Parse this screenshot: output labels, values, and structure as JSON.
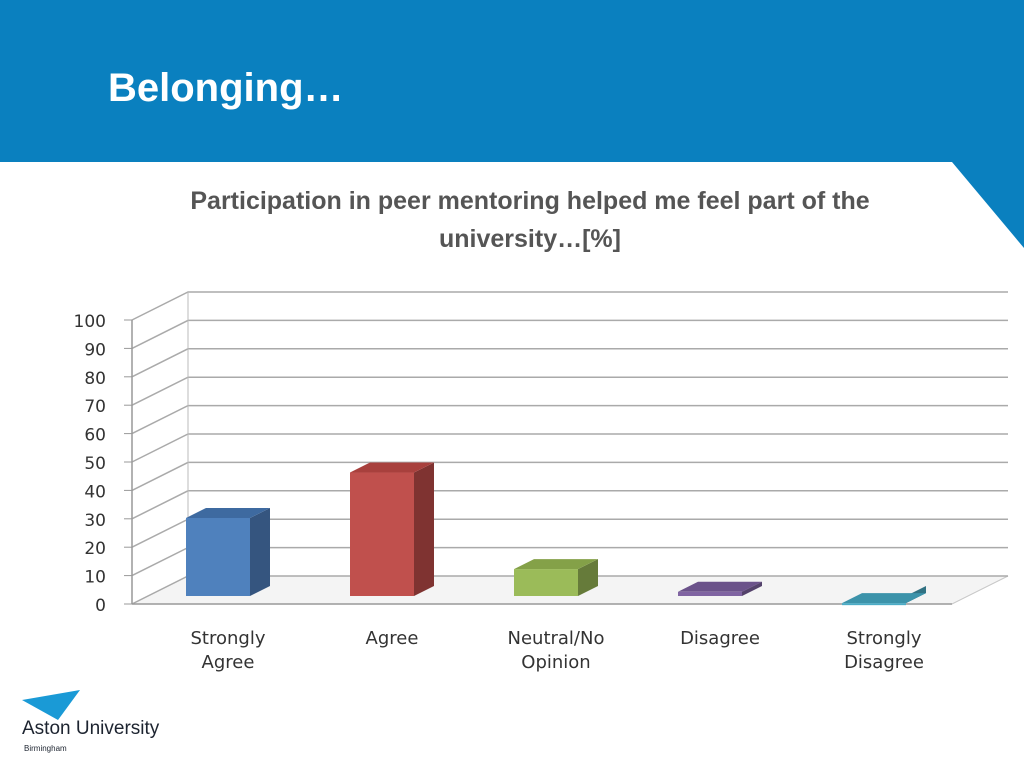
{
  "slide": {
    "title": "Belonging…",
    "colors": {
      "header": "#0a80bf",
      "title_text": "#ffffff",
      "chart_title": "#555555"
    }
  },
  "logo": {
    "name": "Aston University",
    "subtitle": "Birmingham",
    "icon": "triangle-icon",
    "color": "#0a80bf"
  },
  "chart_data": {
    "type": "bar",
    "title": "Participation in peer mentoring helped me feel part of the university…[%]",
    "categories": [
      [
        "Strongly",
        "Agree"
      ],
      [
        "Agree"
      ],
      [
        "Neutral/No",
        "Opinion"
      ],
      [
        "Disagree"
      ],
      [
        "Strongly",
        "Disagree"
      ]
    ],
    "values": [
      31,
      47,
      13,
      5,
      1
    ],
    "colors": [
      "#4f81bd",
      "#c0504d",
      "#9bbb59",
      "#8064a2",
      "#4bacc6"
    ],
    "side_colors": [
      "#35557f",
      "#7f3331",
      "#667b3a",
      "#54426b",
      "#317283"
    ],
    "top_colors": [
      "#3e6aa0",
      "#a8403d",
      "#84a148",
      "#6b528a",
      "#3c93aa"
    ],
    "ylim": [
      0,
      100
    ],
    "yticks": [
      0,
      10,
      20,
      30,
      40,
      50,
      60,
      70,
      80,
      90,
      100
    ],
    "xlabel": "",
    "ylabel": "",
    "grid": true,
    "legend": "none",
    "style": "3d-column"
  }
}
